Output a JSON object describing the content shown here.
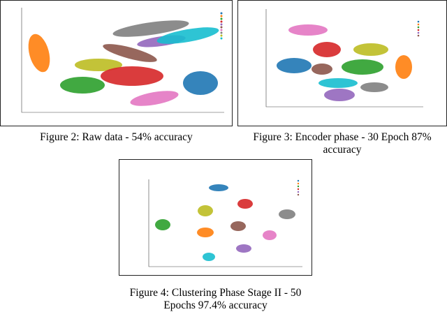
{
  "figures": [
    {
      "caption": "Figure 2: Raw data - 54% accuracy"
    },
    {
      "caption": "Figure 3: Encoder phase - 30 Epoch 87% accuracy"
    },
    {
      "caption": "Figure 4: Clustering Phase Stage II - 50 Epochs 97.4% accuracy"
    }
  ]
}
